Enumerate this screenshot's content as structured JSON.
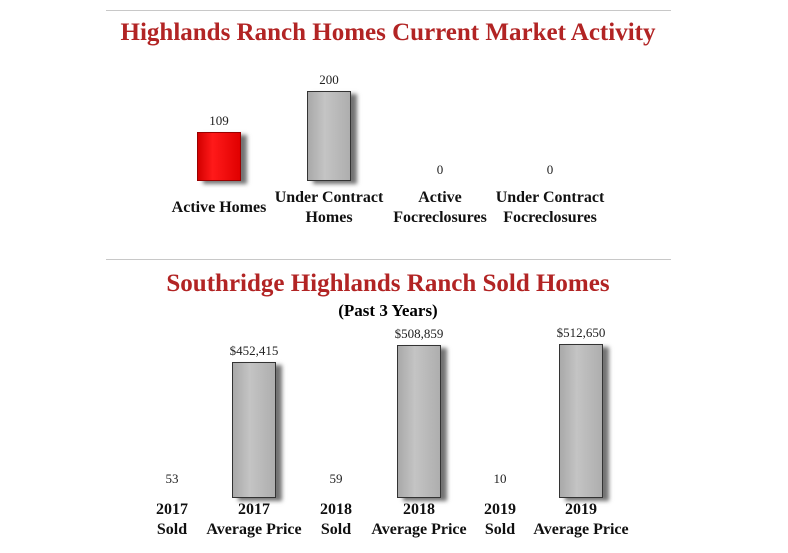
{
  "chart_data": [
    {
      "type": "bar",
      "title": "Highlands Ranch Homes Current Market Activity",
      "categories": [
        [
          "Active Homes"
        ],
        [
          "Under Contract",
          "Homes"
        ],
        [
          "Active",
          "Focreclosures"
        ],
        [
          "Under Contract",
          "Focreclosures"
        ]
      ],
      "values": [
        109,
        200,
        0,
        0
      ],
      "value_labels": [
        "109",
        "200",
        "0",
        "0"
      ],
      "colors": [
        "#ff0000",
        "#b4b4b4",
        "#ff0000",
        "#b4b4b4"
      ]
    },
    {
      "type": "bar",
      "title": "Southridge Highlands Ranch Sold Homes",
      "subtitle": "(Past 3 Years)",
      "categories": [
        [
          "2017",
          "Sold"
        ],
        [
          "2017",
          "Average Price"
        ],
        [
          "2018",
          "Sold"
        ],
        [
          "2018",
          "Average Price"
        ],
        [
          "2019",
          "Sold"
        ],
        [
          "2019",
          "Average Price"
        ]
      ],
      "values": [
        53,
        452415,
        59,
        508859,
        10,
        512650
      ],
      "value_labels": [
        "53",
        "$452,415",
        "59",
        "$508,859",
        "10",
        "$512,650"
      ],
      "colors": [
        "#ff0000",
        "#b4b4b4",
        "#ff0000",
        "#b4b4b4",
        "#ff0000",
        "#b4b4b4"
      ]
    }
  ]
}
